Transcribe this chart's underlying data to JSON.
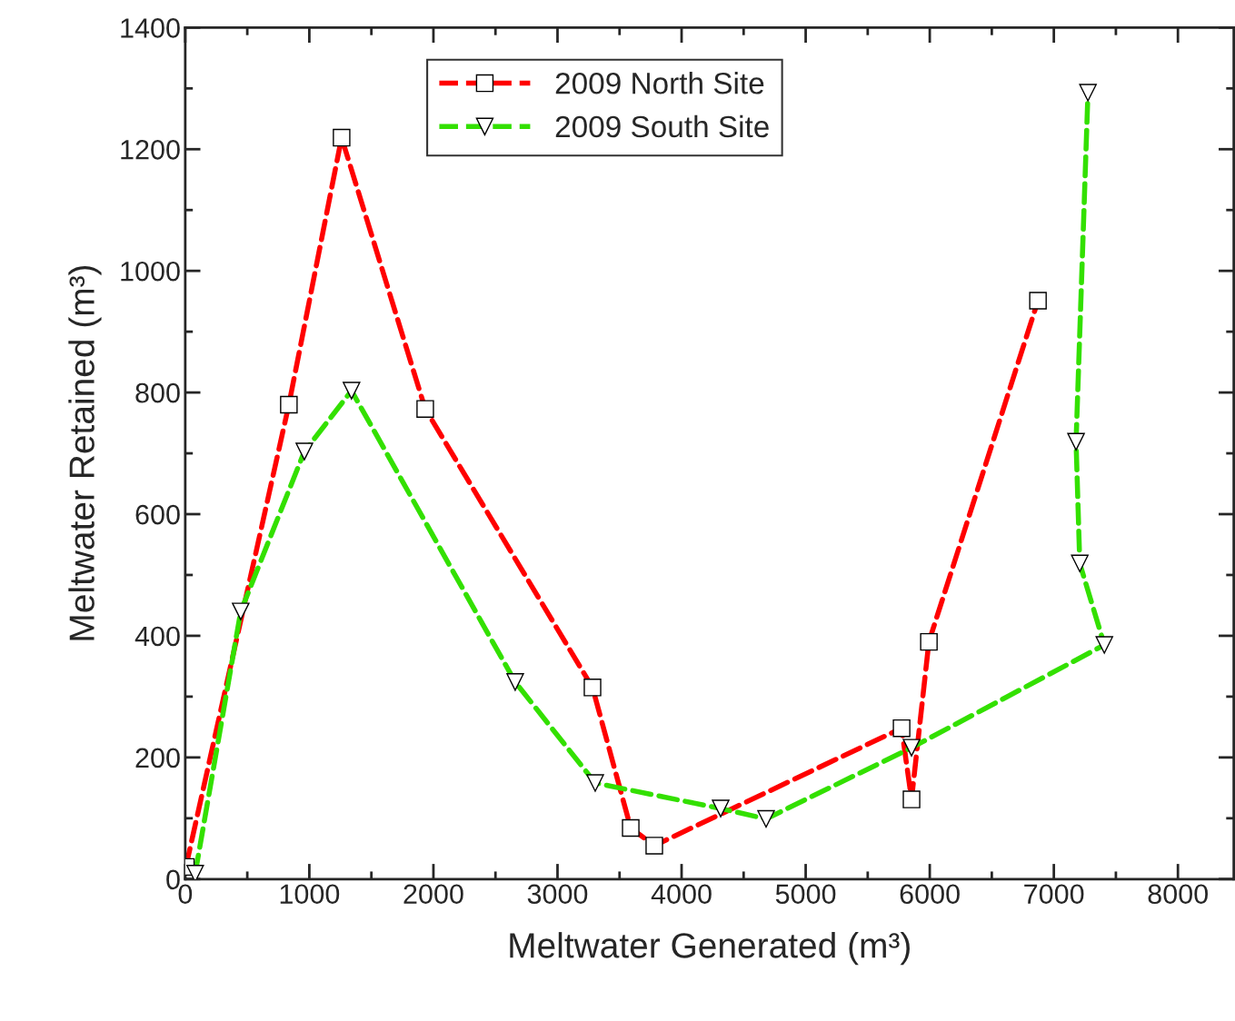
{
  "chart_data": {
    "type": "line",
    "xlabel": "Meltwater Generated (m³)",
    "ylabel": "Meltwater Retained (m³)",
    "xlim": [
      0,
      8450
    ],
    "xticks": [
      0,
      1000,
      2000,
      3000,
      4000,
      5000,
      6000,
      7000,
      8000
    ],
    "ylim": [
      0,
      1400
    ],
    "yticks": [
      0,
      200,
      400,
      600,
      800,
      1000,
      1200,
      1400
    ],
    "grid": false,
    "legend": "top",
    "line_style": "dashed",
    "series": [
      {
        "name": "2009 North Site",
        "color": "#ff0000",
        "marker": "square",
        "x": [
          5,
          835,
          1260,
          1934,
          3282,
          3590,
          3780,
          5773,
          5853,
          5993,
          6872
        ],
        "values": [
          20,
          780,
          1219,
          773,
          315,
          84,
          55,
          248,
          131,
          390,
          951
        ]
      },
      {
        "name": "2009 South Site",
        "color": "#33e000",
        "marker": "triangle",
        "x": [
          80,
          447,
          960,
          1340,
          2659,
          3304,
          4315,
          4681,
          5853,
          7407,
          7209,
          7179,
          7275
        ],
        "values": [
          9,
          440,
          703,
          803,
          324,
          158,
          116,
          99,
          216,
          385,
          519,
          719,
          1293
        ]
      }
    ]
  }
}
